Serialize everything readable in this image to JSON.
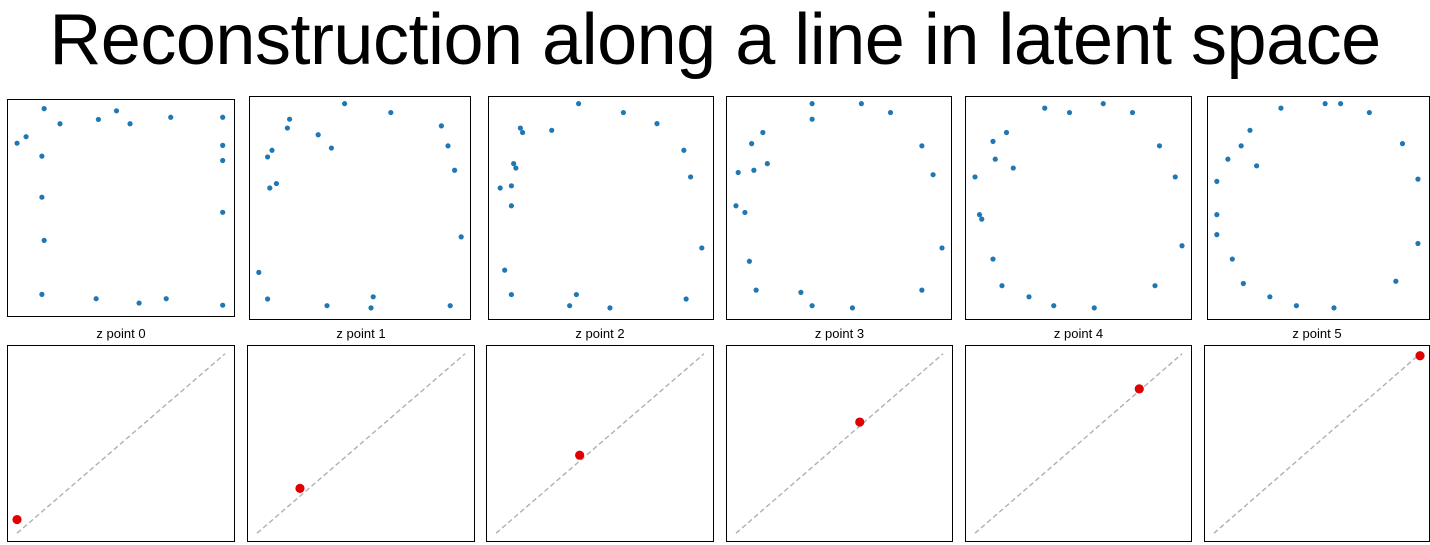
{
  "title": "Reconstruction along a line in latent space",
  "colors": {
    "points": "#1f77b4",
    "marker": "#e00000",
    "line": "#b0b0b0",
    "frame": "#000000"
  },
  "chart_data": [
    {
      "type": "scatter",
      "role": "reconstructions",
      "xlim": [
        0,
        1
      ],
      "ylim": [
        0,
        1
      ],
      "panels": [
        {
          "points": [
            [
              0.04,
              0.8
            ],
            [
              0.08,
              0.83
            ],
            [
              0.15,
              0.74
            ],
            [
              0.15,
              0.55
            ],
            [
              0.16,
              0.35
            ],
            [
              0.15,
              0.1
            ],
            [
              0.16,
              0.96
            ],
            [
              0.23,
              0.89
            ],
            [
              0.4,
              0.91
            ],
            [
              0.48,
              0.95
            ],
            [
              0.54,
              0.89
            ],
            [
              0.72,
              0.92
            ],
            [
              0.39,
              0.08
            ],
            [
              0.58,
              0.06
            ],
            [
              0.7,
              0.08
            ],
            [
              0.95,
              0.05
            ],
            [
              0.95,
              0.92
            ],
            [
              0.95,
              0.79
            ],
            [
              0.95,
              0.72
            ],
            [
              0.95,
              0.48
            ]
          ]
        },
        {
          "points": [
            [
              0.08,
              0.73
            ],
            [
              0.1,
              0.76
            ],
            [
              0.09,
              0.59
            ],
            [
              0.12,
              0.61
            ],
            [
              0.17,
              0.86
            ],
            [
              0.18,
              0.9
            ],
            [
              0.31,
              0.83
            ],
            [
              0.37,
              0.77
            ],
            [
              0.43,
              0.97
            ],
            [
              0.64,
              0.93
            ],
            [
              0.87,
              0.87
            ],
            [
              0.9,
              0.78
            ],
            [
              0.93,
              0.67
            ],
            [
              0.96,
              0.37
            ],
            [
              0.04,
              0.21
            ],
            [
              0.08,
              0.09
            ],
            [
              0.35,
              0.06
            ],
            [
              0.56,
              0.1
            ],
            [
              0.55,
              0.05
            ],
            [
              0.91,
              0.06
            ]
          ]
        },
        {
          "points": [
            [
              0.14,
              0.86
            ],
            [
              0.15,
              0.84
            ],
            [
              0.11,
              0.7
            ],
            [
              0.12,
              0.68
            ],
            [
              0.1,
              0.6
            ],
            [
              0.05,
              0.59
            ],
            [
              0.1,
              0.51
            ],
            [
              0.28,
              0.85
            ],
            [
              0.4,
              0.97
            ],
            [
              0.6,
              0.93
            ],
            [
              0.75,
              0.88
            ],
            [
              0.87,
              0.76
            ],
            [
              0.9,
              0.64
            ],
            [
              0.95,
              0.32
            ],
            [
              0.07,
              0.22
            ],
            [
              0.1,
              0.11
            ],
            [
              0.36,
              0.06
            ],
            [
              0.39,
              0.11
            ],
            [
              0.54,
              0.05
            ],
            [
              0.88,
              0.09
            ]
          ]
        },
        {
          "points": [
            [
              0.16,
              0.84
            ],
            [
              0.11,
              0.79
            ],
            [
              0.12,
              0.67
            ],
            [
              0.18,
              0.7
            ],
            [
              0.05,
              0.66
            ],
            [
              0.04,
              0.51
            ],
            [
              0.08,
              0.48
            ],
            [
              0.1,
              0.26
            ],
            [
              0.13,
              0.13
            ],
            [
              0.38,
              0.97
            ],
            [
              0.38,
              0.9
            ],
            [
              0.6,
              0.97
            ],
            [
              0.73,
              0.93
            ],
            [
              0.87,
              0.78
            ],
            [
              0.92,
              0.65
            ],
            [
              0.96,
              0.32
            ],
            [
              0.33,
              0.12
            ],
            [
              0.38,
              0.06
            ],
            [
              0.56,
              0.05
            ],
            [
              0.87,
              0.13
            ]
          ]
        },
        {
          "points": [
            [
              0.12,
              0.8
            ],
            [
              0.13,
              0.72
            ],
            [
              0.18,
              0.84
            ],
            [
              0.21,
              0.68
            ],
            [
              0.04,
              0.64
            ],
            [
              0.06,
              0.47
            ],
            [
              0.07,
              0.45
            ],
            [
              0.12,
              0.27
            ],
            [
              0.16,
              0.15
            ],
            [
              0.28,
              0.1
            ],
            [
              0.39,
              0.06
            ],
            [
              0.57,
              0.05
            ],
            [
              0.35,
              0.95
            ],
            [
              0.61,
              0.97
            ],
            [
              0.74,
              0.93
            ],
            [
              0.86,
              0.78
            ],
            [
              0.93,
              0.64
            ],
            [
              0.96,
              0.33
            ],
            [
              0.84,
              0.15
            ],
            [
              0.46,
              0.93
            ]
          ]
        },
        {
          "points": [
            [
              0.15,
              0.78
            ],
            [
              0.09,
              0.72
            ],
            [
              0.19,
              0.85
            ],
            [
              0.22,
              0.69
            ],
            [
              0.04,
              0.62
            ],
            [
              0.04,
              0.47
            ],
            [
              0.04,
              0.38
            ],
            [
              0.11,
              0.27
            ],
            [
              0.16,
              0.16
            ],
            [
              0.28,
              0.1
            ],
            [
              0.4,
              0.06
            ],
            [
              0.57,
              0.05
            ],
            [
              0.33,
              0.95
            ],
            [
              0.53,
              0.97
            ],
            [
              0.6,
              0.97
            ],
            [
              0.73,
              0.93
            ],
            [
              0.88,
              0.79
            ],
            [
              0.95,
              0.63
            ],
            [
              0.95,
              0.34
            ],
            [
              0.85,
              0.17
            ]
          ]
        }
      ]
    },
    {
      "type": "scatter",
      "role": "latent-position",
      "xlim": [
        0,
        1
      ],
      "ylim": [
        0,
        1
      ],
      "line": [
        [
          0.04,
          0.04
        ],
        [
          0.96,
          0.96
        ]
      ],
      "panels": [
        {
          "label": "z point 0",
          "point": [
            0.04,
            0.11
          ]
        },
        {
          "label": "z point 1",
          "point": [
            0.23,
            0.27
          ]
        },
        {
          "label": "z point 2",
          "point": [
            0.41,
            0.44
          ]
        },
        {
          "label": "z point 3",
          "point": [
            0.59,
            0.61
          ]
        },
        {
          "label": "z point 4",
          "point": [
            0.77,
            0.78
          ]
        },
        {
          "label": "z point 5",
          "point": [
            0.96,
            0.95
          ]
        }
      ]
    }
  ]
}
